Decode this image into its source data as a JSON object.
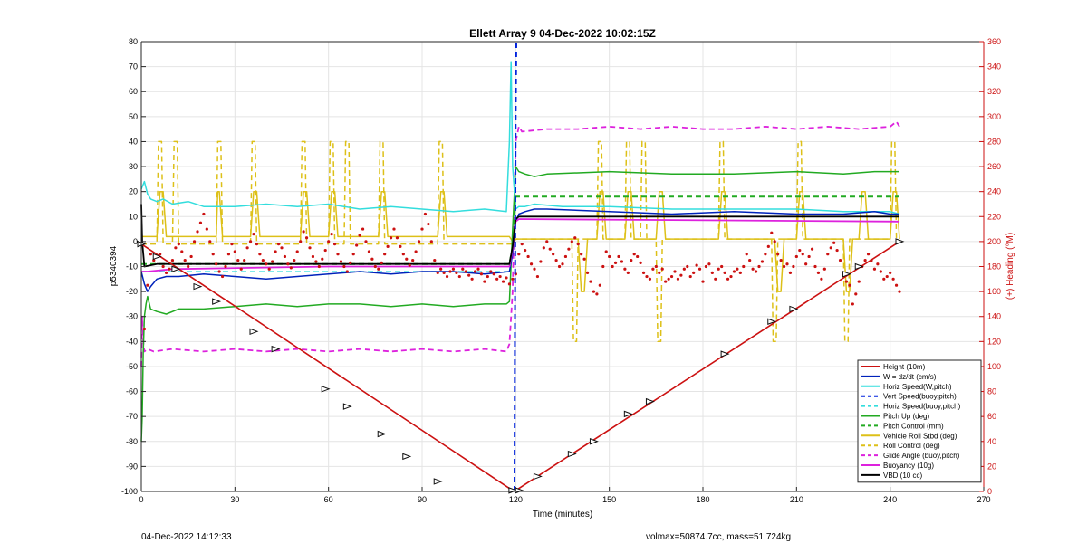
{
  "chart_data": {
    "type": "line",
    "title": "Ellett Array 9 04-Dec-2022 10:02:15Z",
    "xlabel": "Time (minutes)",
    "ylabel": "p5340394",
    "y2label": "(+) Heading (°M)",
    "xlim": [
      0,
      270
    ],
    "ylim": [
      -100,
      80
    ],
    "y2lim": [
      0,
      360
    ],
    "xticks": [
      0,
      30,
      60,
      90,
      120,
      150,
      180,
      210,
      240,
      270
    ],
    "yticks": [
      -100,
      -90,
      -80,
      -70,
      -60,
      -50,
      -40,
      -30,
      -20,
      -10,
      0,
      10,
      20,
      30,
      40,
      50,
      60,
      70,
      80
    ],
    "y2ticks": [
      0,
      20,
      40,
      60,
      80,
      100,
      120,
      140,
      160,
      180,
      200,
      220,
      240,
      260,
      280,
      300,
      320,
      340,
      360
    ],
    "grid": true,
    "legend_position": "bottom-right",
    "series": [
      {
        "name": "Height (10m)",
        "color": "#cc1111",
        "style": "solid",
        "width": 1.6,
        "x": [
          0,
          119,
          120,
          243
        ],
        "y": [
          -1,
          -99.6,
          -99.6,
          0
        ]
      },
      {
        "name": "W = dz/dt (cm/s)",
        "color": "#0022bb",
        "style": "solid",
        "width": 1.5,
        "x": [
          0,
          1,
          2,
          3,
          5,
          8,
          12,
          20,
          30,
          40,
          50,
          60,
          70,
          80,
          90,
          100,
          110,
          118,
          119,
          120,
          121,
          123,
          126,
          130,
          150,
          170,
          190,
          210,
          225,
          235,
          240,
          243
        ],
        "y": [
          -12,
          -17,
          -20,
          -18,
          -15,
          -14,
          -14,
          -13,
          -14,
          -15,
          -14,
          -13,
          -12,
          -13,
          -12,
          -12,
          -13,
          -12,
          -5,
          8,
          11,
          12,
          13,
          13,
          12,
          11,
          12,
          11,
          11,
          12,
          11,
          11
        ]
      },
      {
        "name": "Horiz Speed(W,pitch)",
        "color": "#33dddd",
        "style": "solid",
        "width": 1.5,
        "x": [
          0,
          1,
          2,
          3,
          5,
          7,
          10,
          15,
          20,
          30,
          40,
          50,
          60,
          70,
          80,
          90,
          100,
          110,
          117,
          118,
          118.5,
          119,
          120,
          121,
          123,
          126,
          135,
          150,
          170,
          190,
          210,
          225,
          235,
          240,
          243
        ],
        "y": [
          21,
          24,
          19,
          17,
          16,
          17,
          15,
          16,
          14,
          14,
          15,
          14,
          15,
          13,
          14,
          13,
          12,
          13,
          12,
          40,
          72,
          30,
          13,
          14,
          14,
          15,
          14,
          14,
          13,
          13,
          13,
          12,
          12,
          12,
          11
        ]
      },
      {
        "name": "Vert Speed(buoy,pitch)",
        "color": "#0022dd",
        "style": "dashed",
        "width": 2,
        "x": [
          119.6,
          119.8,
          120.0,
          120.2
        ],
        "y": [
          -100,
          -20,
          50,
          80
        ]
      },
      {
        "name": "Horiz Speed(buoy,pitch)",
        "color": "#33dddd",
        "style": "dashed",
        "width": 1.2,
        "x": [
          0,
          118,
          119,
          120,
          243
        ],
        "y": [
          -12,
          -12,
          -5,
          10,
          10
        ]
      },
      {
        "name": "Pitch Up (deg)",
        "color": "#22aa22",
        "style": "solid",
        "width": 1.5,
        "x": [
          0,
          0.3,
          0.6,
          1,
          1.5,
          2,
          3,
          5,
          8,
          12,
          20,
          30,
          40,
          50,
          60,
          70,
          80,
          90,
          100,
          110,
          117,
          118,
          119,
          120,
          121,
          123,
          126,
          130,
          150,
          170,
          190,
          210,
          225,
          235,
          240,
          243
        ],
        "y": [
          -80,
          -70,
          -45,
          -30,
          -25,
          -22,
          -27,
          -28,
          -29,
          -27,
          -27,
          -26,
          -25,
          -26,
          -25,
          -25,
          -26,
          -25,
          -26,
          -25,
          -25,
          -24,
          5,
          30,
          28,
          27,
          26,
          27,
          28,
          27,
          27,
          28,
          27,
          28,
          28,
          28
        ]
      },
      {
        "name": "Pitch Control (mm)",
        "color": "#22aa22",
        "style": "dashed",
        "width": 2,
        "x": [
          0,
          118,
          119,
          120,
          243
        ],
        "y": [
          -9,
          -9,
          -2,
          18,
          18
        ]
      },
      {
        "name": "Vehicle Roll Stbd (deg)",
        "color": "#ddc018",
        "style": "solid",
        "width": 1.5,
        "x": [
          0,
          5,
          6,
          7,
          8,
          9,
          24,
          24.5,
          25,
          26,
          35,
          36,
          37,
          38,
          51,
          52,
          53,
          54,
          60,
          61,
          62,
          63,
          76,
          77,
          78,
          79,
          95,
          96,
          97,
          98,
          118,
          119,
          120,
          121,
          140,
          141,
          142,
          143,
          146,
          147,
          148,
          149,
          155,
          156,
          157,
          158,
          165,
          166,
          167,
          168,
          185,
          186,
          187,
          188,
          203,
          204,
          205,
          206,
          210,
          211,
          212,
          213,
          225,
          226,
          227,
          228,
          230,
          231,
          232,
          233,
          240,
          241,
          242,
          243
        ],
        "y": [
          2,
          2,
          20,
          20,
          2,
          2,
          2,
          20,
          20,
          2,
          2,
          20,
          20,
          2,
          2,
          20,
          20,
          2,
          2,
          20,
          20,
          2,
          2,
          20,
          20,
          2,
          2,
          20,
          20,
          2,
          2,
          0,
          1,
          1,
          1,
          -20,
          -20,
          1,
          1,
          20,
          20,
          1,
          1,
          20,
          20,
          1,
          1,
          20,
          20,
          1,
          1,
          20,
          20,
          1,
          1,
          -20,
          -20,
          1,
          1,
          20,
          20,
          1,
          1,
          -20,
          -20,
          1,
          1,
          20,
          20,
          1,
          1,
          20,
          20,
          1
        ]
      },
      {
        "name": "Roll Control (deg)",
        "color": "#ddc018",
        "style": "dashed",
        "width": 1.5,
        "x": [
          0,
          5,
          5.5,
          6.5,
          7,
          10,
          10.5,
          11.5,
          12,
          24,
          24.5,
          25.5,
          26,
          35,
          35.5,
          36.5,
          37,
          51,
          51.5,
          52.5,
          53,
          60,
          60.5,
          61.5,
          62,
          65,
          65.5,
          66.5,
          67,
          76,
          76.5,
          77.5,
          78,
          95,
          95.5,
          96.5,
          97,
          118,
          119,
          120,
          121,
          138,
          138.5,
          139.5,
          140,
          146,
          146.5,
          147.5,
          148,
          155,
          155.5,
          156.5,
          157,
          160,
          160.5,
          161.5,
          162,
          165,
          165.5,
          166.5,
          167,
          185,
          185.5,
          186.5,
          187,
          202,
          202.5,
          203.5,
          204,
          210,
          210.5,
          211.5,
          212,
          225,
          225.5,
          226.5,
          227,
          240,
          240.5,
          241.5,
          242,
          243
        ],
        "y": [
          -1,
          -1,
          40,
          40,
          -1,
          -1,
          40,
          40,
          -1,
          -1,
          40,
          40,
          -1,
          -1,
          40,
          40,
          -1,
          -1,
          40,
          40,
          -1,
          -1,
          40,
          40,
          -1,
          -1,
          40,
          40,
          -1,
          -1,
          40,
          40,
          -1,
          -1,
          40,
          40,
          -1,
          -1,
          -1,
          1,
          1,
          1,
          -40,
          -40,
          1,
          1,
          40,
          40,
          1,
          1,
          40,
          40,
          1,
          1,
          40,
          40,
          1,
          1,
          -40,
          -40,
          1,
          1,
          40,
          40,
          1,
          1,
          -40,
          -40,
          1,
          1,
          40,
          40,
          1,
          1,
          -40,
          -40,
          1,
          1,
          40,
          40,
          1,
          1
        ]
      },
      {
        "name": "Glide Angle (buoy,pitch)",
        "color": "#dd22dd",
        "style": "dashed",
        "width": 1.8,
        "x": [
          0,
          0.3,
          0.6,
          1,
          2,
          4,
          10,
          20,
          30,
          40,
          50,
          60,
          70,
          80,
          90,
          100,
          110,
          117,
          118,
          119,
          120,
          121,
          122,
          130,
          140,
          150,
          160,
          170,
          180,
          190,
          200,
          210,
          220,
          230,
          240,
          242,
          243
        ],
        "y": [
          -50,
          -30,
          -40,
          -44,
          -43,
          -44,
          -43,
          -44,
          -43,
          -44,
          -43,
          -44,
          -43,
          -44,
          -43,
          -44,
          -43,
          -44,
          -41,
          -20,
          40,
          46,
          44,
          45,
          45,
          46,
          45,
          46,
          45,
          45,
          46,
          45,
          46,
          45,
          46,
          48,
          46
        ]
      },
      {
        "name": "Buoyancy (10g)",
        "color": "#dd22dd",
        "style": "solid",
        "width": 1.8,
        "x": [
          0,
          2,
          10,
          60,
          118,
          119,
          120,
          121,
          243
        ],
        "y": [
          -12,
          -12,
          -11,
          -10,
          -10,
          -3,
          8,
          9,
          8
        ]
      },
      {
        "name": "VBD (10 cc)",
        "color": "#000000",
        "style": "solid",
        "width": 1.8,
        "x": [
          0,
          0.3,
          1,
          5,
          118,
          119,
          120,
          121,
          243
        ],
        "y": [
          15,
          0,
          -10,
          -9,
          -9,
          -2,
          9,
          10,
          10
        ]
      }
    ],
    "heading_scatter": {
      "name": "(+) Heading (°M)",
      "color": "#cc1111",
      "axis": "right",
      "x": [
        1,
        2,
        3,
        4,
        5,
        6,
        7,
        8,
        9,
        10,
        11,
        12,
        13,
        14,
        15,
        16,
        17,
        18,
        19,
        20,
        21,
        22,
        23,
        24,
        25,
        26,
        27,
        28,
        29,
        30,
        31,
        32,
        33,
        34,
        35,
        36,
        37,
        38,
        39,
        40,
        41,
        42,
        43,
        44,
        45,
        46,
        47,
        48,
        49,
        50,
        51,
        52,
        53,
        54,
        55,
        56,
        57,
        58,
        59,
        60,
        61,
        62,
        63,
        64,
        65,
        66,
        67,
        68,
        69,
        70,
        71,
        72,
        73,
        74,
        75,
        76,
        77,
        78,
        79,
        80,
        81,
        82,
        83,
        84,
        85,
        86,
        87,
        88,
        89,
        90,
        91,
        92,
        93,
        94,
        95,
        96,
        97,
        98,
        99,
        100,
        101,
        102,
        103,
        104,
        105,
        106,
        107,
        108,
        109,
        110,
        111,
        112,
        113,
        114,
        115,
        116,
        117,
        118,
        119,
        120,
        121,
        122,
        123,
        124,
        125,
        126,
        127,
        128,
        129,
        130,
        131,
        132,
        133,
        134,
        135,
        136,
        137,
        138,
        139,
        140,
        141,
        142,
        143,
        144,
        145,
        146,
        147,
        148,
        149,
        150,
        151,
        152,
        153,
        154,
        155,
        156,
        157,
        158,
        159,
        160,
        161,
        162,
        163,
        164,
        165,
        166,
        167,
        168,
        169,
        170,
        171,
        172,
        173,
        174,
        175,
        176,
        177,
        178,
        179,
        180,
        181,
        182,
        183,
        184,
        185,
        186,
        187,
        188,
        189,
        190,
        191,
        192,
        193,
        194,
        195,
        196,
        197,
        198,
        199,
        200,
        201,
        202,
        203,
        204,
        205,
        206,
        207,
        208,
        209,
        210,
        211,
        212,
        213,
        214,
        215,
        216,
        217,
        218,
        219,
        220,
        221,
        222,
        223,
        224,
        225,
        226,
        227,
        228,
        229,
        230,
        231,
        232,
        233,
        234,
        235,
        236,
        237,
        238,
        239,
        240,
        241,
        242,
        243
      ],
      "y": [
        130,
        165,
        190,
        185,
        188,
        190,
        180,
        175,
        178,
        185,
        195,
        198,
        192,
        185,
        180,
        188,
        200,
        208,
        215,
        222,
        210,
        200,
        190,
        182,
        176,
        172,
        180,
        190,
        198,
        192,
        185,
        178,
        185,
        195,
        200,
        206,
        198,
        190,
        185,
        182,
        178,
        184,
        192,
        198,
        195,
        188,
        182,
        179,
        185,
        192,
        200,
        208,
        203,
        195,
        188,
        184,
        180,
        186,
        193,
        200,
        206,
        198,
        190,
        184,
        180,
        176,
        183,
        190,
        197,
        205,
        210,
        200,
        192,
        186,
        180,
        178,
        183,
        190,
        196,
        203,
        210,
        203,
        196,
        190,
        186,
        181,
        185,
        192,
        200,
        210,
        222,
        214,
        200,
        185,
        175,
        178,
        175,
        172,
        176,
        178,
        175,
        172,
        178,
        176,
        173,
        170,
        176,
        178,
        174,
        168,
        172,
        176,
        174,
        170,
        172,
        168,
        171,
        166,
        170,
        174,
        190,
        198,
        193,
        188,
        182,
        178,
        172,
        184,
        195,
        200,
        194,
        190,
        185,
        180,
        182,
        188,
        194,
        200,
        203,
        198,
        190,
        186,
        175,
        168,
        160,
        158,
        165,
        180,
        192,
        188,
        180,
        183,
        188,
        184,
        178,
        175,
        185,
        190,
        188,
        183,
        175,
        172,
        170,
        178,
        180,
        175,
        178,
        168,
        170,
        172,
        176,
        170,
        173,
        178,
        180,
        172,
        175,
        181,
        178,
        168,
        180,
        182,
        175,
        170,
        178,
        180,
        175,
        170,
        172,
        176,
        178,
        175,
        180,
        190,
        185,
        178,
        176,
        180,
        184,
        190,
        196,
        207,
        200,
        190,
        185,
        180,
        182,
        175,
        180,
        188,
        193,
        190,
        182,
        188,
        194,
        180,
        175,
        170,
        178,
        190,
        195,
        199,
        193,
        185,
        175,
        168,
        165,
        150,
        158,
        168,
        180,
        185,
        190,
        185,
        178,
        182,
        176,
        170,
        172,
        175,
        170,
        165,
        160
      ]
    },
    "triangle_markers": {
      "x": [
        0,
        5,
        11,
        18,
        24,
        36,
        43,
        59,
        66,
        77,
        85,
        95,
        119,
        121,
        127,
        138,
        145,
        156,
        163,
        187,
        202,
        209,
        226,
        230,
        243
      ],
      "y": [
        -1,
        -6,
        -11,
        -18,
        -24,
        -36,
        -43,
        -59,
        -66,
        -77,
        -86,
        -96,
        -99.6,
        -99.6,
        -94,
        -85,
        -80,
        -69,
        -64,
        -45,
        -32,
        -27,
        -13,
        -10,
        0
      ]
    }
  },
  "footer": {
    "left": "04-Dec-2022 14:12:33",
    "right": "volmax=50874.7cc, mass=51.724kg"
  }
}
